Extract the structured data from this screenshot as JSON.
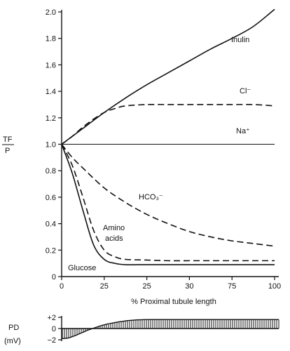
{
  "chart_data": [
    {
      "type": "line",
      "ylabel_top": "TF",
      "ylabel_bottom": "P",
      "xlabel": "% Proximal tubule length",
      "xlim": [
        0,
        100
      ],
      "ylim": [
        0,
        2.0
      ],
      "x_tick_labels": [
        "0",
        "25",
        "25",
        "30",
        "75",
        "100"
      ],
      "y_ticks": [
        0,
        0.2,
        0.4,
        0.6,
        0.8,
        1.0,
        1.2,
        1.4,
        1.6,
        1.8,
        2.0
      ],
      "y_tick_labels": [
        "0",
        "0.2",
        "0.4",
        "0.6",
        "0.8",
        "1.0",
        "1.2",
        "1.4",
        "1.6",
        "1.8",
        "2.0"
      ],
      "series": [
        {
          "name": "Inulin",
          "style": "solid",
          "width": 1.6,
          "x": [
            0,
            5,
            10,
            20,
            30,
            40,
            50,
            60,
            70,
            80,
            90,
            100
          ],
          "y": [
            1.0,
            1.06,
            1.12,
            1.24,
            1.35,
            1.45,
            1.54,
            1.63,
            1.72,
            1.8,
            1.89,
            2.02
          ]
        },
        {
          "name": "Cl⁻",
          "style": "dashed",
          "width": 1.6,
          "x": [
            0,
            5,
            10,
            15,
            20,
            25,
            30,
            40,
            50,
            60,
            70,
            80,
            90,
            100
          ],
          "y": [
            1.0,
            1.06,
            1.13,
            1.19,
            1.24,
            1.27,
            1.29,
            1.3,
            1.3,
            1.3,
            1.3,
            1.3,
            1.3,
            1.29
          ]
        },
        {
          "name": "Na⁺",
          "style": "solid",
          "width": 1.1,
          "x": [
            0,
            100
          ],
          "y": [
            1.0,
            1.0
          ]
        },
        {
          "name": "HCO₃⁻",
          "style": "dashed",
          "width": 1.6,
          "x": [
            0,
            5,
            10,
            20,
            30,
            40,
            50,
            60,
            70,
            80,
            90,
            100
          ],
          "y": [
            1.0,
            0.9,
            0.82,
            0.67,
            0.56,
            0.47,
            0.4,
            0.34,
            0.3,
            0.27,
            0.25,
            0.23
          ]
        },
        {
          "name": "Amino acids",
          "style": "dashed",
          "width": 1.6,
          "x": [
            0,
            5,
            10,
            15,
            20,
            25,
            30,
            40,
            50,
            60,
            70,
            80,
            90,
            100
          ],
          "y": [
            1.0,
            0.84,
            0.6,
            0.35,
            0.2,
            0.15,
            0.13,
            0.125,
            0.12,
            0.12,
            0.12,
            0.12,
            0.12,
            0.12
          ]
        },
        {
          "name": "Glucose",
          "style": "solid",
          "width": 1.6,
          "x": [
            0,
            5,
            10,
            15,
            20,
            25,
            30,
            40,
            50,
            60,
            70,
            80,
            90,
            100
          ],
          "y": [
            1.0,
            0.78,
            0.5,
            0.24,
            0.13,
            0.1,
            0.09,
            0.09,
            0.09,
            0.09,
            0.09,
            0.09,
            0.09,
            0.09
          ]
        }
      ]
    },
    {
      "type": "area",
      "ylabel_top": "PD",
      "ylabel_bottom": "(mV)",
      "ylim": [
        -2,
        2
      ],
      "y_tick_labels": [
        "+2",
        "0",
        "−2"
      ],
      "series": [
        {
          "name": "PD",
          "x": [
            0,
            3,
            6,
            9,
            12,
            15,
            18,
            21,
            25,
            30,
            35,
            40,
            50,
            60,
            70,
            80,
            90,
            100
          ],
          "y": [
            -1.8,
            -1.7,
            -1.3,
            -0.8,
            -0.3,
            0.1,
            0.5,
            0.8,
            1.1,
            1.4,
            1.55,
            1.6,
            1.6,
            1.6,
            1.6,
            1.6,
            1.6,
            1.6
          ]
        }
      ]
    }
  ]
}
